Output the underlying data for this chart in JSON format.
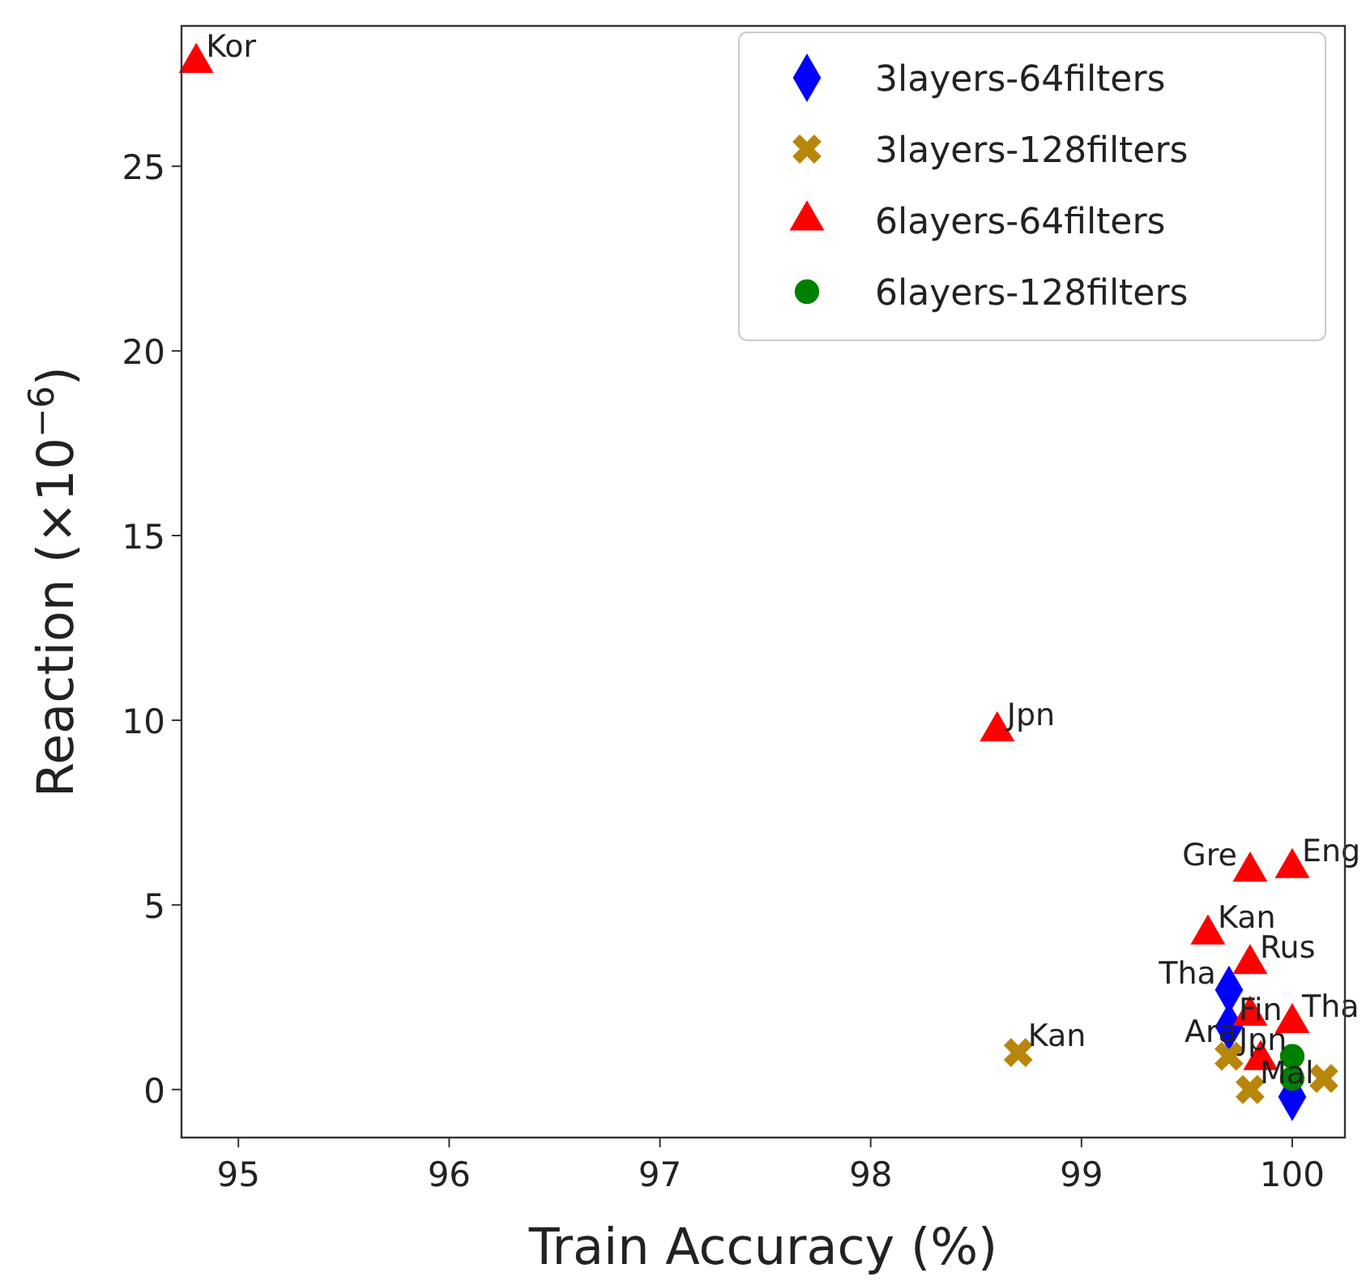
{
  "chart_data": {
    "type": "scatter",
    "xlabel": "Train Accuracy (%)",
    "ylabel": "Reaction (×10$^{−6}$)",
    "xlim": [
      94.73,
      100.25
    ],
    "xticks": [
      95,
      96,
      97,
      98,
      99,
      100
    ],
    "ylim": [
      -1.3,
      28.8
    ],
    "yticks": [
      0,
      5,
      10,
      15,
      20,
      25
    ],
    "grid": false,
    "legend": "top right",
    "series": [
      {
        "name": "3layers-64filters",
        "color": "#0000ff",
        "marker": "diamond",
        "x": [
          99.7,
          99.7,
          100
        ],
        "values": [
          2.7,
          1.7,
          -0.2
        ]
      },
      {
        "name": "3layers-128filters",
        "color": "#b8860b",
        "marker": "cross",
        "x": [
          98.7,
          99.7,
          99.8,
          100.15
        ],
        "values": [
          1.0,
          0.9,
          0.0,
          0.3
        ]
      },
      {
        "name": "6layers-64filters",
        "color": "#ff0000",
        "marker": "triangle",
        "x": [
          94.8,
          98.6,
          99.8,
          100,
          99.6,
          99.8,
          99.8,
          100,
          99.85
        ],
        "values": [
          27.8,
          9.7,
          5.9,
          6.0,
          4.2,
          3.4,
          2.0,
          1.8,
          0.8
        ]
      },
      {
        "name": "6layers-128filters",
        "color": "#008000",
        "marker": "circle",
        "x": [
          100,
          100
        ],
        "values": [
          0.9,
          0.3
        ]
      }
    ],
    "annotations": [
      {
        "text": "Kor",
        "x": 94.8,
        "y": 27.8
      },
      {
        "text": "Jpn",
        "x": 98.6,
        "y": 9.7
      },
      {
        "text": "Eng",
        "x": 100,
        "y": 6.0
      },
      {
        "text": "Gre",
        "x": 99.8,
        "y": 5.9
      },
      {
        "text": "Kan",
        "x": 99.6,
        "y": 4.2
      },
      {
        "text": "Rus",
        "x": 99.8,
        "y": 3.4
      },
      {
        "text": "Tha",
        "x": 99.7,
        "y": 2.7
      },
      {
        "text": "Tha",
        "x": 100,
        "y": 1.8
      },
      {
        "text": "Ara",
        "x": 99.8,
        "y": 2.0
      },
      {
        "text": "Fin",
        "x": 99.7,
        "y": 1.7
      },
      {
        "text": "Kan",
        "x": 98.7,
        "y": 1.0
      },
      {
        "text": "Jpn",
        "x": 99.7,
        "y": 0.9
      },
      {
        "text": "Mal",
        "x": 99.8,
        "y": 0.0
      }
    ]
  }
}
